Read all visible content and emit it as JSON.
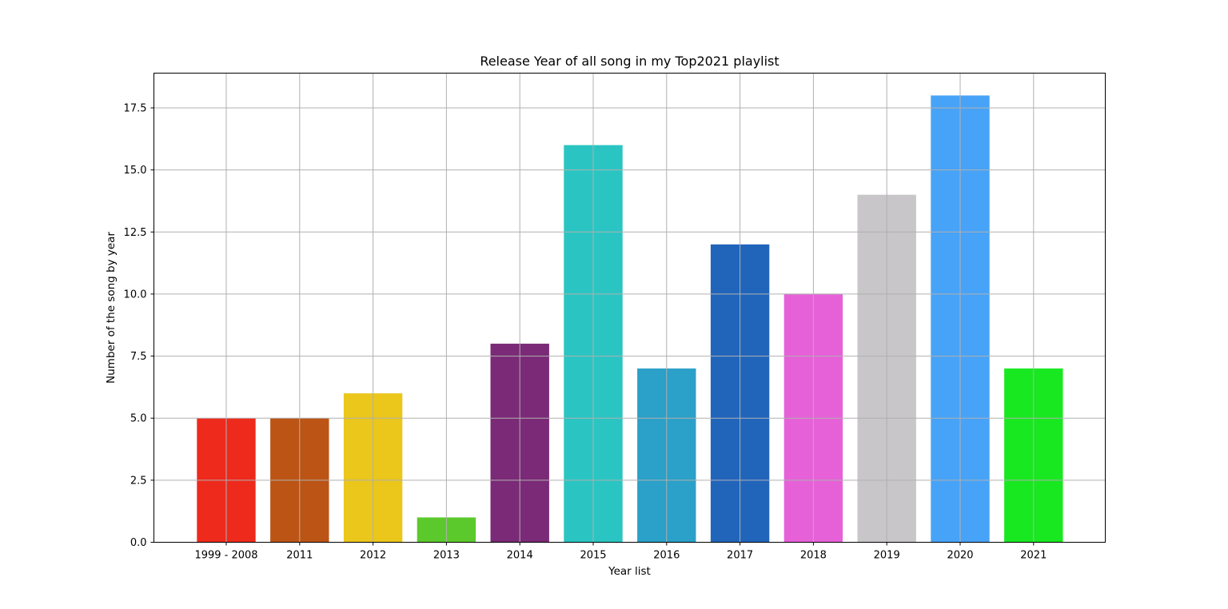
{
  "chart_data": {
    "type": "bar",
    "title": "Release Year of all song in my Top2021 playlist",
    "xlabel": "Year list",
    "ylabel": "Number of the song by year",
    "categories": [
      "1999 - 2008",
      "2011",
      "2012",
      "2013",
      "2014",
      "2015",
      "2016",
      "2017",
      "2018",
      "2019",
      "2020",
      "2021"
    ],
    "values": [
      5,
      5,
      6,
      1,
      8,
      16,
      7,
      12,
      10,
      14,
      18,
      7
    ],
    "colors": [
      "#ee2a1d",
      "#bc5415",
      "#ebc61b",
      "#5bc92b",
      "#7a2a76",
      "#2ac5c2",
      "#2ba0c8",
      "#2165bb",
      "#e661d8",
      "#c8c6c9",
      "#47a3f7",
      "#18e820"
    ],
    "ylim": [
      0,
      18.9
    ],
    "yticks": [
      "0.0",
      "2.5",
      "5.0",
      "7.5",
      "10.0",
      "12.5",
      "15.0",
      "17.5"
    ],
    "grid": true,
    "legend": "none"
  }
}
